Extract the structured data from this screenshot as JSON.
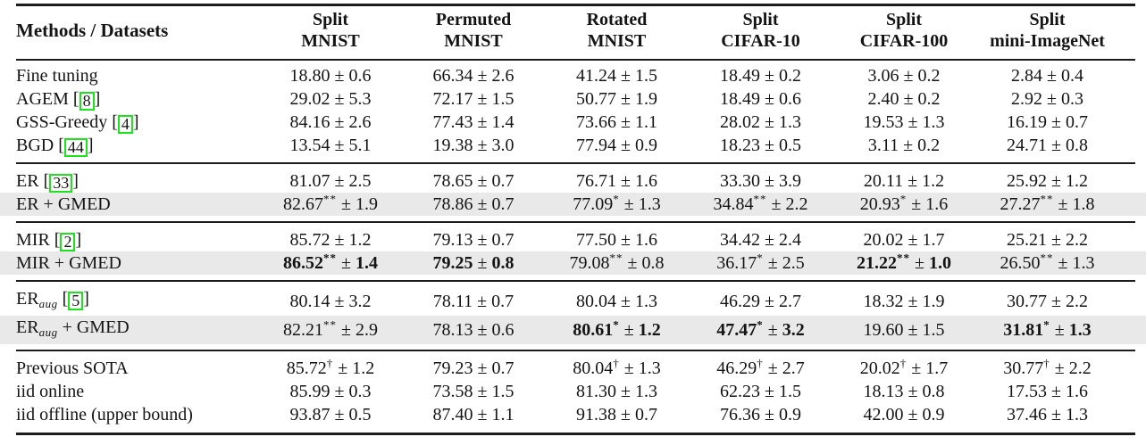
{
  "colors": {
    "highlight_row": "#e9e9e9",
    "citation_box_border": "#1ce41c",
    "rule": "#1c1c1c",
    "text": "#141414"
  },
  "table": {
    "methods_header": "Methods / Datasets",
    "pm_symbol": "±",
    "columns": [
      {
        "line1": "Split",
        "line2": "MNIST"
      },
      {
        "line1": "Permuted",
        "line2": "MNIST"
      },
      {
        "line1": "Rotated",
        "line2": "MNIST"
      },
      {
        "line1": "Split",
        "line2": "CIFAR-10"
      },
      {
        "line1": "Split",
        "line2": "CIFAR-100"
      },
      {
        "line1": "Split",
        "line2": "mini-ImageNet"
      }
    ],
    "sections": [
      {
        "rows": [
          {
            "method": {
              "pre": "Fine tuning",
              "sub": "",
              "post": "",
              "cite": ""
            },
            "shaded": false,
            "cells": [
              {
                "v": "18.80",
                "sup": "",
                "std": "0.6",
                "bold": false
              },
              {
                "v": "66.34",
                "sup": "",
                "std": "2.6",
                "bold": false
              },
              {
                "v": "41.24",
                "sup": "",
                "std": "1.5",
                "bold": false
              },
              {
                "v": "18.49",
                "sup": "",
                "std": "0.2",
                "bold": false
              },
              {
                "v": "3.06",
                "sup": "",
                "std": "0.2",
                "bold": false
              },
              {
                "v": "2.84",
                "sup": "",
                "std": "0.4",
                "bold": false
              }
            ]
          },
          {
            "method": {
              "pre": "AGEM",
              "sub": "",
              "post": "",
              "cite": "8"
            },
            "shaded": false,
            "cells": [
              {
                "v": "29.02",
                "sup": "",
                "std": "5.3",
                "bold": false
              },
              {
                "v": "72.17",
                "sup": "",
                "std": "1.5",
                "bold": false
              },
              {
                "v": "50.77",
                "sup": "",
                "std": "1.9",
                "bold": false
              },
              {
                "v": "18.49",
                "sup": "",
                "std": "0.6",
                "bold": false
              },
              {
                "v": "2.40",
                "sup": "",
                "std": "0.2",
                "bold": false
              },
              {
                "v": "2.92",
                "sup": "",
                "std": "0.3",
                "bold": false
              }
            ]
          },
          {
            "method": {
              "pre": "GSS-Greedy",
              "sub": "",
              "post": "",
              "cite": "4"
            },
            "shaded": false,
            "cells": [
              {
                "v": "84.16",
                "sup": "",
                "std": "2.6",
                "bold": false
              },
              {
                "v": "77.43",
                "sup": "",
                "std": "1.4",
                "bold": false
              },
              {
                "v": "73.66",
                "sup": "",
                "std": "1.1",
                "bold": false
              },
              {
                "v": "28.02",
                "sup": "",
                "std": "1.3",
                "bold": false
              },
              {
                "v": "19.53",
                "sup": "",
                "std": "1.3",
                "bold": false
              },
              {
                "v": "16.19",
                "sup": "",
                "std": "0.7",
                "bold": false
              }
            ]
          },
          {
            "method": {
              "pre": "BGD",
              "sub": "",
              "post": "",
              "cite": "44"
            },
            "shaded": false,
            "cells": [
              {
                "v": "13.54",
                "sup": "",
                "std": "5.1",
                "bold": false
              },
              {
                "v": "19.38",
                "sup": "",
                "std": "3.0",
                "bold": false
              },
              {
                "v": "77.94",
                "sup": "",
                "std": "0.9",
                "bold": false
              },
              {
                "v": "18.23",
                "sup": "",
                "std": "0.5",
                "bold": false
              },
              {
                "v": "3.11",
                "sup": "",
                "std": "0.2",
                "bold": false
              },
              {
                "v": "24.71",
                "sup": "",
                "std": "0.8",
                "bold": false
              }
            ]
          }
        ]
      },
      {
        "rows": [
          {
            "method": {
              "pre": "ER",
              "sub": "",
              "post": "",
              "cite": "33"
            },
            "shaded": false,
            "cells": [
              {
                "v": "81.07",
                "sup": "",
                "std": "2.5",
                "bold": false
              },
              {
                "v": "78.65",
                "sup": "",
                "std": "0.7",
                "bold": false
              },
              {
                "v": "76.71",
                "sup": "",
                "std": "1.6",
                "bold": false
              },
              {
                "v": "33.30",
                "sup": "",
                "std": "3.9",
                "bold": false
              },
              {
                "v": "20.11",
                "sup": "",
                "std": "1.2",
                "bold": false
              },
              {
                "v": "25.92",
                "sup": "",
                "std": "1.2",
                "bold": false
              }
            ]
          },
          {
            "method": {
              "pre": "ER + GMED",
              "sub": "",
              "post": "",
              "cite": ""
            },
            "shaded": true,
            "cells": [
              {
                "v": "82.67",
                "sup": "**",
                "std": "1.9",
                "bold": false
              },
              {
                "v": "78.86",
                "sup": "",
                "std": "0.7",
                "bold": false
              },
              {
                "v": "77.09",
                "sup": "*",
                "std": "1.3",
                "bold": false
              },
              {
                "v": "34.84",
                "sup": "**",
                "std": "2.2",
                "bold": false
              },
              {
                "v": "20.93",
                "sup": "*",
                "std": "1.6",
                "bold": false
              },
              {
                "v": "27.27",
                "sup": "**",
                "std": "1.8",
                "bold": false
              }
            ]
          }
        ]
      },
      {
        "rows": [
          {
            "method": {
              "pre": "MIR",
              "sub": "",
              "post": "",
              "cite": "2"
            },
            "shaded": false,
            "cells": [
              {
                "v": "85.72",
                "sup": "",
                "std": "1.2",
                "bold": false
              },
              {
                "v": "79.13",
                "sup": "",
                "std": "0.7",
                "bold": false
              },
              {
                "v": "77.50",
                "sup": "",
                "std": "1.6",
                "bold": false
              },
              {
                "v": "34.42",
                "sup": "",
                "std": "2.4",
                "bold": false
              },
              {
                "v": "20.02",
                "sup": "",
                "std": "1.7",
                "bold": false
              },
              {
                "v": "25.21",
                "sup": "",
                "std": "2.2",
                "bold": false
              }
            ]
          },
          {
            "method": {
              "pre": "MIR + GMED",
              "sub": "",
              "post": "",
              "cite": ""
            },
            "shaded": true,
            "cells": [
              {
                "v": "86.52",
                "sup": "**",
                "std": "1.4",
                "bold": true
              },
              {
                "v": "79.25",
                "sup": "",
                "std": "0.8",
                "bold": true
              },
              {
                "v": "79.08",
                "sup": "**",
                "std": "0.8",
                "bold": false
              },
              {
                "v": "36.17",
                "sup": "*",
                "std": "2.5",
                "bold": false
              },
              {
                "v": "21.22",
                "sup": "**",
                "std": "1.0",
                "bold": true
              },
              {
                "v": "26.50",
                "sup": "**",
                "std": "1.3",
                "bold": false
              }
            ]
          }
        ]
      },
      {
        "rows": [
          {
            "method": {
              "pre": "ER",
              "sub": "aug",
              "post": "",
              "cite": "5"
            },
            "shaded": false,
            "cells": [
              {
                "v": "80.14",
                "sup": "",
                "std": "3.2",
                "bold": false
              },
              {
                "v": "78.11",
                "sup": "",
                "std": "0.7",
                "bold": false
              },
              {
                "v": "80.04",
                "sup": "",
                "std": "1.3",
                "bold": false
              },
              {
                "v": "46.29",
                "sup": "",
                "std": "2.7",
                "bold": false
              },
              {
                "v": "18.32",
                "sup": "",
                "std": "1.9",
                "bold": false
              },
              {
                "v": "30.77",
                "sup": "",
                "std": "2.2",
                "bold": false
              }
            ]
          },
          {
            "method": {
              "pre": "ER",
              "sub": "aug",
              "post": " + GMED",
              "cite": ""
            },
            "shaded": true,
            "cells": [
              {
                "v": "82.21",
                "sup": "**",
                "std": "2.9",
                "bold": false
              },
              {
                "v": "78.13",
                "sup": "",
                "std": "0.6",
                "bold": false
              },
              {
                "v": "80.61",
                "sup": "*",
                "std": "1.2",
                "bold": true
              },
              {
                "v": "47.47",
                "sup": "*",
                "std": "3.2",
                "bold": true
              },
              {
                "v": "19.60",
                "sup": "",
                "std": "1.5",
                "bold": false
              },
              {
                "v": "31.81",
                "sup": "*",
                "std": "1.3",
                "bold": true
              }
            ]
          }
        ]
      },
      {
        "rows": [
          {
            "method": {
              "pre": "Previous SOTA",
              "sub": "",
              "post": "",
              "cite": ""
            },
            "shaded": false,
            "cells": [
              {
                "v": "85.72",
                "sup": "†",
                "std": "1.2",
                "bold": false
              },
              {
                "v": "79.23",
                "sup": "",
                "std": "0.7",
                "bold": false
              },
              {
                "v": "80.04",
                "sup": "†",
                "std": "1.3",
                "bold": false
              },
              {
                "v": "46.29",
                "sup": "†",
                "std": "2.7",
                "bold": false
              },
              {
                "v": "20.02",
                "sup": "†",
                "std": "1.7",
                "bold": false
              },
              {
                "v": "30.77",
                "sup": "†",
                "std": "2.2",
                "bold": false
              }
            ]
          },
          {
            "method": {
              "pre": "iid online",
              "sub": "",
              "post": "",
              "cite": ""
            },
            "shaded": false,
            "cells": [
              {
                "v": "85.99",
                "sup": "",
                "std": "0.3",
                "bold": false
              },
              {
                "v": "73.58",
                "sup": "",
                "std": "1.5",
                "bold": false
              },
              {
                "v": "81.30",
                "sup": "",
                "std": "1.3",
                "bold": false
              },
              {
                "v": "62.23",
                "sup": "",
                "std": "1.5",
                "bold": false
              },
              {
                "v": "18.13",
                "sup": "",
                "std": "0.8",
                "bold": false
              },
              {
                "v": "17.53",
                "sup": "",
                "std": "1.6",
                "bold": false
              }
            ]
          },
          {
            "method": {
              "pre": "iid offline (upper bound)",
              "sub": "",
              "post": "",
              "cite": ""
            },
            "shaded": false,
            "cells": [
              {
                "v": "93.87",
                "sup": "",
                "std": "0.5",
                "bold": false
              },
              {
                "v": "87.40",
                "sup": "",
                "std": "1.1",
                "bold": false
              },
              {
                "v": "91.38",
                "sup": "",
                "std": "0.7",
                "bold": false
              },
              {
                "v": "76.36",
                "sup": "",
                "std": "0.9",
                "bold": false
              },
              {
                "v": "42.00",
                "sup": "",
                "std": "0.9",
                "bold": false
              },
              {
                "v": "37.46",
                "sup": "",
                "std": "1.3",
                "bold": false
              }
            ]
          }
        ]
      }
    ]
  }
}
